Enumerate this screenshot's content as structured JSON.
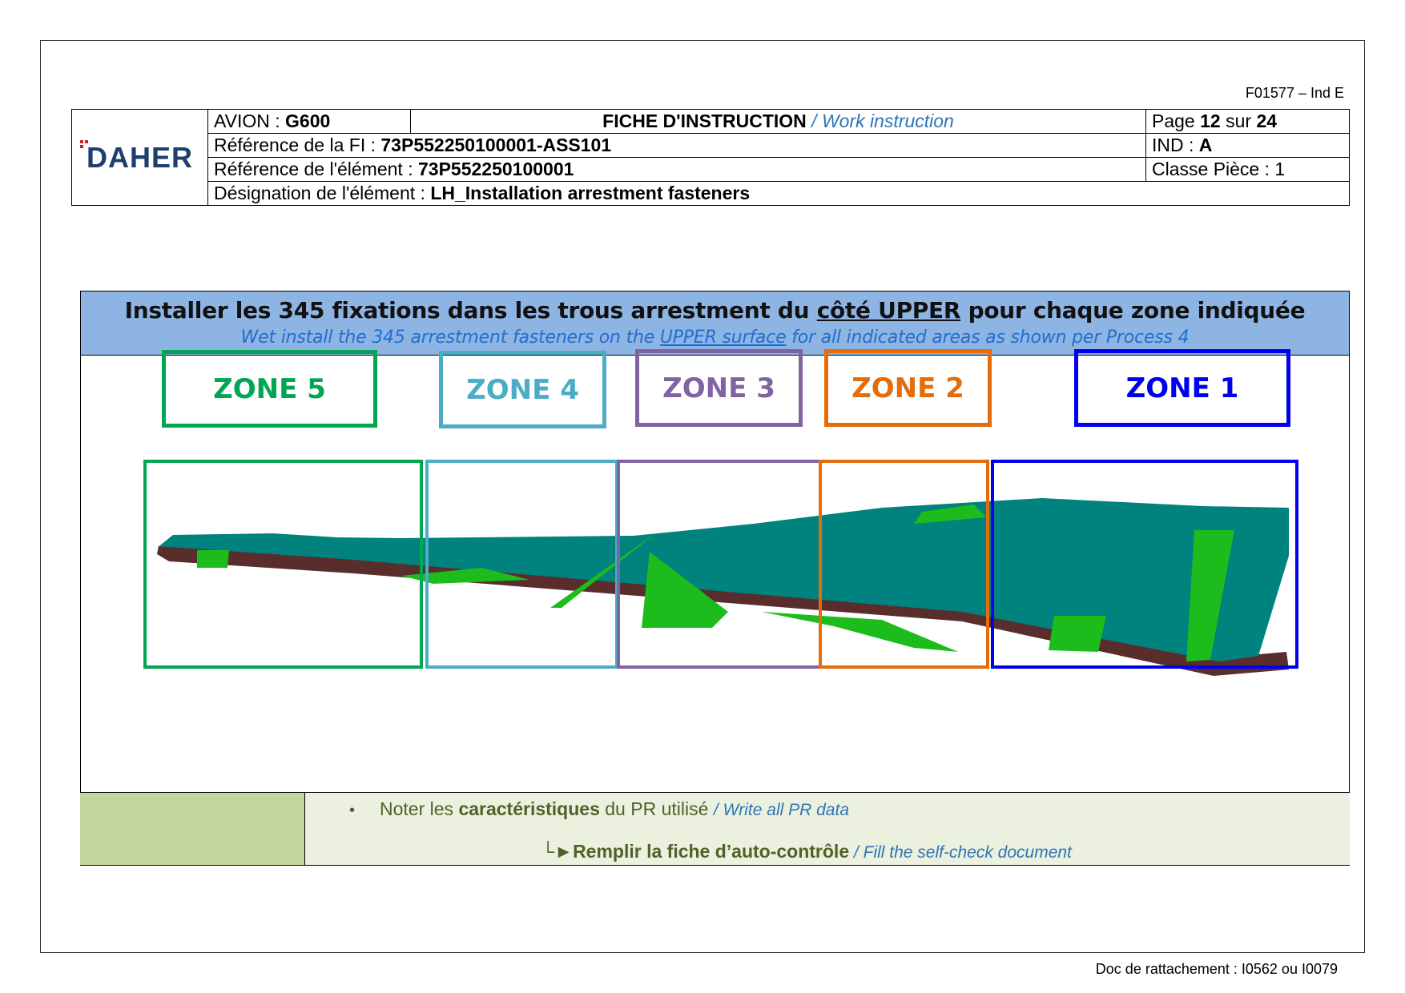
{
  "form_code": "F01577 – Ind E",
  "footer_ref": "Doc de rattachement : I0562 ou I0079",
  "header": {
    "logo_text": "DAHER",
    "avion_label": "AVION : ",
    "avion_value": "G600",
    "fiche_title": "FICHE D'INSTRUCTION",
    "fiche_title_en": " / Work instruction",
    "page_label": "Page ",
    "page_current": "12",
    "page_sep": " sur ",
    "page_total": "24",
    "ref_fi_label": "Référence de la FI : ",
    "ref_fi_value": "73P552250100001-ASS101",
    "ind_label": "IND : ",
    "ind_value": "A",
    "ref_elem_label": "Référence de l'élément : ",
    "ref_elem_value": "73P552250100001",
    "classe_label": "Classe Pièce : 1",
    "desig_label": "Désignation de l'élément : ",
    "desig_value": "LH_Installation arrestment fasteners"
  },
  "banner": {
    "fr_before": "Installer les 345 fixations dans les trous arrestment du ",
    "fr_underlined": "côté UPPER",
    "fr_after": " pour chaque zone indiquée",
    "en_before": "Wet install the 345 arrestment fasteners on the ",
    "en_underlined": "UPPER surface",
    "en_after": " for all indicated areas as shown per Process 4"
  },
  "zones": [
    {
      "label": "ZONE 5",
      "color": "#00a651"
    },
    {
      "label": "ZONE 4",
      "color": "#4bacc6"
    },
    {
      "label": "ZONE 3",
      "color": "#8064a2"
    },
    {
      "label": "ZONE 2",
      "color": "#e46c0a"
    },
    {
      "label": "ZONE 1",
      "color": "#0000ee"
    }
  ],
  "wing_colors": {
    "surface": "#00827f",
    "highlight": "#1cbc1c",
    "edge": "#5a2d2d"
  },
  "notes": {
    "note_pre": "Noter les ",
    "note_bold": "caractéristiques",
    "note_post": " du PR utilisé ",
    "note_en": "/ Write all PR data",
    "fill_arrow": "└►",
    "fill_bold": "Remplir la fiche d’auto-contrôle",
    "fill_en": " / Fill the self-check document"
  }
}
